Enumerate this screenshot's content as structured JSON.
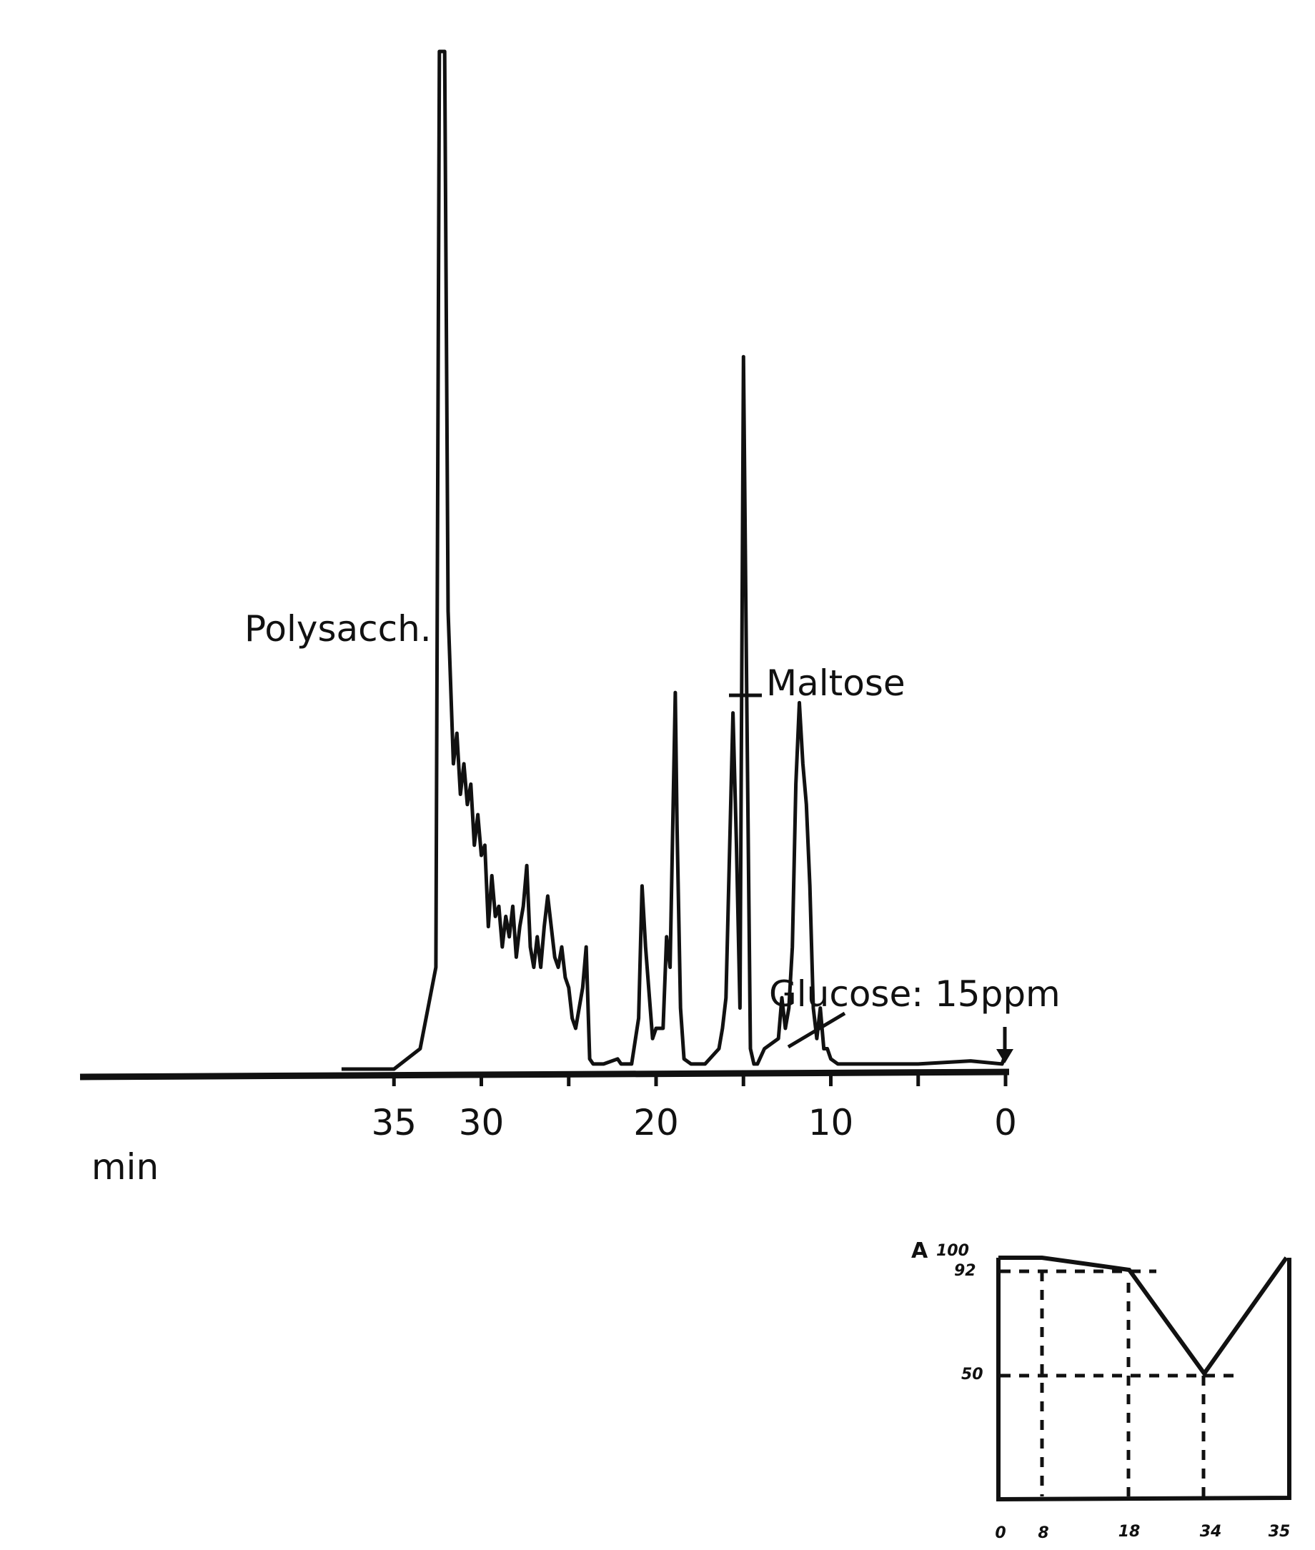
{
  "chart_data": [
    {
      "type": "line",
      "title": "",
      "xlabel": "min",
      "ylabel": "",
      "x_direction": "reversed",
      "xlim": [
        38,
        0
      ],
      "x_ticks": [
        35,
        30,
        20,
        10,
        0
      ],
      "x_minor_ticks": [
        25,
        15,
        5
      ],
      "grid": false,
      "annotations": [
        {
          "text": "Polysacch.",
          "x": 31.8
        },
        {
          "text": "Maltose",
          "x": 11.8
        },
        {
          "text": "Glucose: 15ppm",
          "x": 9.2
        },
        {
          "text": "injection arrow",
          "x": 0
        }
      ],
      "series": [
        {
          "name": "chromatogram",
          "x": [
            38,
            35,
            33.5,
            32.6,
            32.4,
            32.3,
            32.1,
            31.9,
            31.6,
            31.4,
            31.2,
            31.0,
            30.8,
            30.6,
            30.4,
            30.2,
            30.0,
            29.8,
            29.6,
            29.4,
            29.2,
            29.0,
            28.8,
            28.6,
            28.4,
            28.2,
            28.0,
            27.8,
            27.6,
            27.4,
            27.2,
            27.0,
            26.8,
            26.6,
            26.4,
            26.2,
            26.0,
            25.8,
            25.6,
            25.4,
            25.2,
            25.0,
            24.8,
            24.6,
            24.4,
            24.2,
            24.0,
            23.8,
            23.6,
            23.0,
            22.2,
            22.0,
            21.4,
            21.0,
            20.8,
            20.6,
            20.2,
            20.0,
            19.6,
            19.4,
            19.2,
            18.9,
            18.8,
            18.6,
            18.4,
            18.0,
            17.2,
            16.4,
            16.2,
            16.0,
            15.6,
            15.4,
            15.2,
            15.0,
            14.8,
            14.6,
            14.4,
            14.2,
            13.8,
            13.0,
            12.8,
            12.6,
            12.4,
            12.2,
            12.0,
            11.8,
            11.6,
            11.4,
            11.2,
            11.0,
            10.8,
            10.6,
            10.4,
            10.2,
            10.0,
            9.6,
            9.3,
            9.0,
            8.0,
            5.0,
            2.0,
            0.2,
            0
          ],
          "y": [
            0,
            0,
            2,
            10,
            100,
            100,
            100,
            45,
            30,
            33,
            27,
            30,
            26,
            28,
            22,
            25,
            21,
            22,
            14,
            19,
            15,
            16,
            12,
            15,
            13,
            16,
            11,
            14,
            16,
            20,
            12,
            10,
            13,
            10,
            14,
            17,
            14,
            11,
            10,
            12,
            9,
            8,
            5,
            4,
            6,
            8,
            12,
            1,
            0.5,
            0.5,
            1,
            0.5,
            0.5,
            5,
            18,
            12,
            3,
            4,
            4,
            13,
            10,
            37,
            24,
            6,
            1,
            0.5,
            0.5,
            2,
            4,
            7,
            35,
            22,
            6,
            70,
            35,
            2,
            0.5,
            0.5,
            2,
            3,
            7,
            4,
            6,
            12,
            28,
            36,
            30,
            26,
            18,
            6,
            3,
            6,
            2,
            2,
            1,
            0.5,
            0.5,
            0.5,
            0.5,
            0.5,
            0.8,
            0.5,
            1.5
          ]
        }
      ]
    },
    {
      "type": "line",
      "title": "A",
      "xlabel": "",
      "ylabel": "A",
      "x_ticks": [
        0,
        8,
        18,
        34,
        35
      ],
      "y_ticks": [
        100,
        92,
        50
      ],
      "xlim": [
        0,
        35
      ],
      "ylim": [
        0,
        100
      ],
      "grid": false,
      "reference_lines": [
        {
          "type": "horizontal",
          "y": 92,
          "style": "dashed"
        },
        {
          "type": "horizontal",
          "y": 50,
          "style": "dashed"
        },
        {
          "type": "vertical",
          "x": 8,
          "style": "dashed"
        },
        {
          "type": "vertical",
          "x": 18,
          "style": "dashed"
        },
        {
          "type": "vertical",
          "x": 34,
          "style": "dashed"
        }
      ],
      "series": [
        {
          "name": "%A gradient",
          "x": [
            0,
            8,
            18,
            34,
            35
          ],
          "y": [
            100,
            100,
            92,
            50,
            100
          ]
        }
      ]
    }
  ],
  "main_chart": {
    "annotations": {
      "polysaccharide": "Polysacch.",
      "maltose": "Maltose",
      "glucose": "Glucose: 15ppm"
    },
    "x_tick_labels": [
      "35",
      "30",
      "20",
      "10",
      "0"
    ],
    "x_unit": "min"
  },
  "inset_chart": {
    "title": "A",
    "y_tick_labels": [
      "100",
      "92",
      "50"
    ],
    "x_tick_labels": [
      "0",
      "8",
      "18",
      "34",
      "35"
    ]
  }
}
